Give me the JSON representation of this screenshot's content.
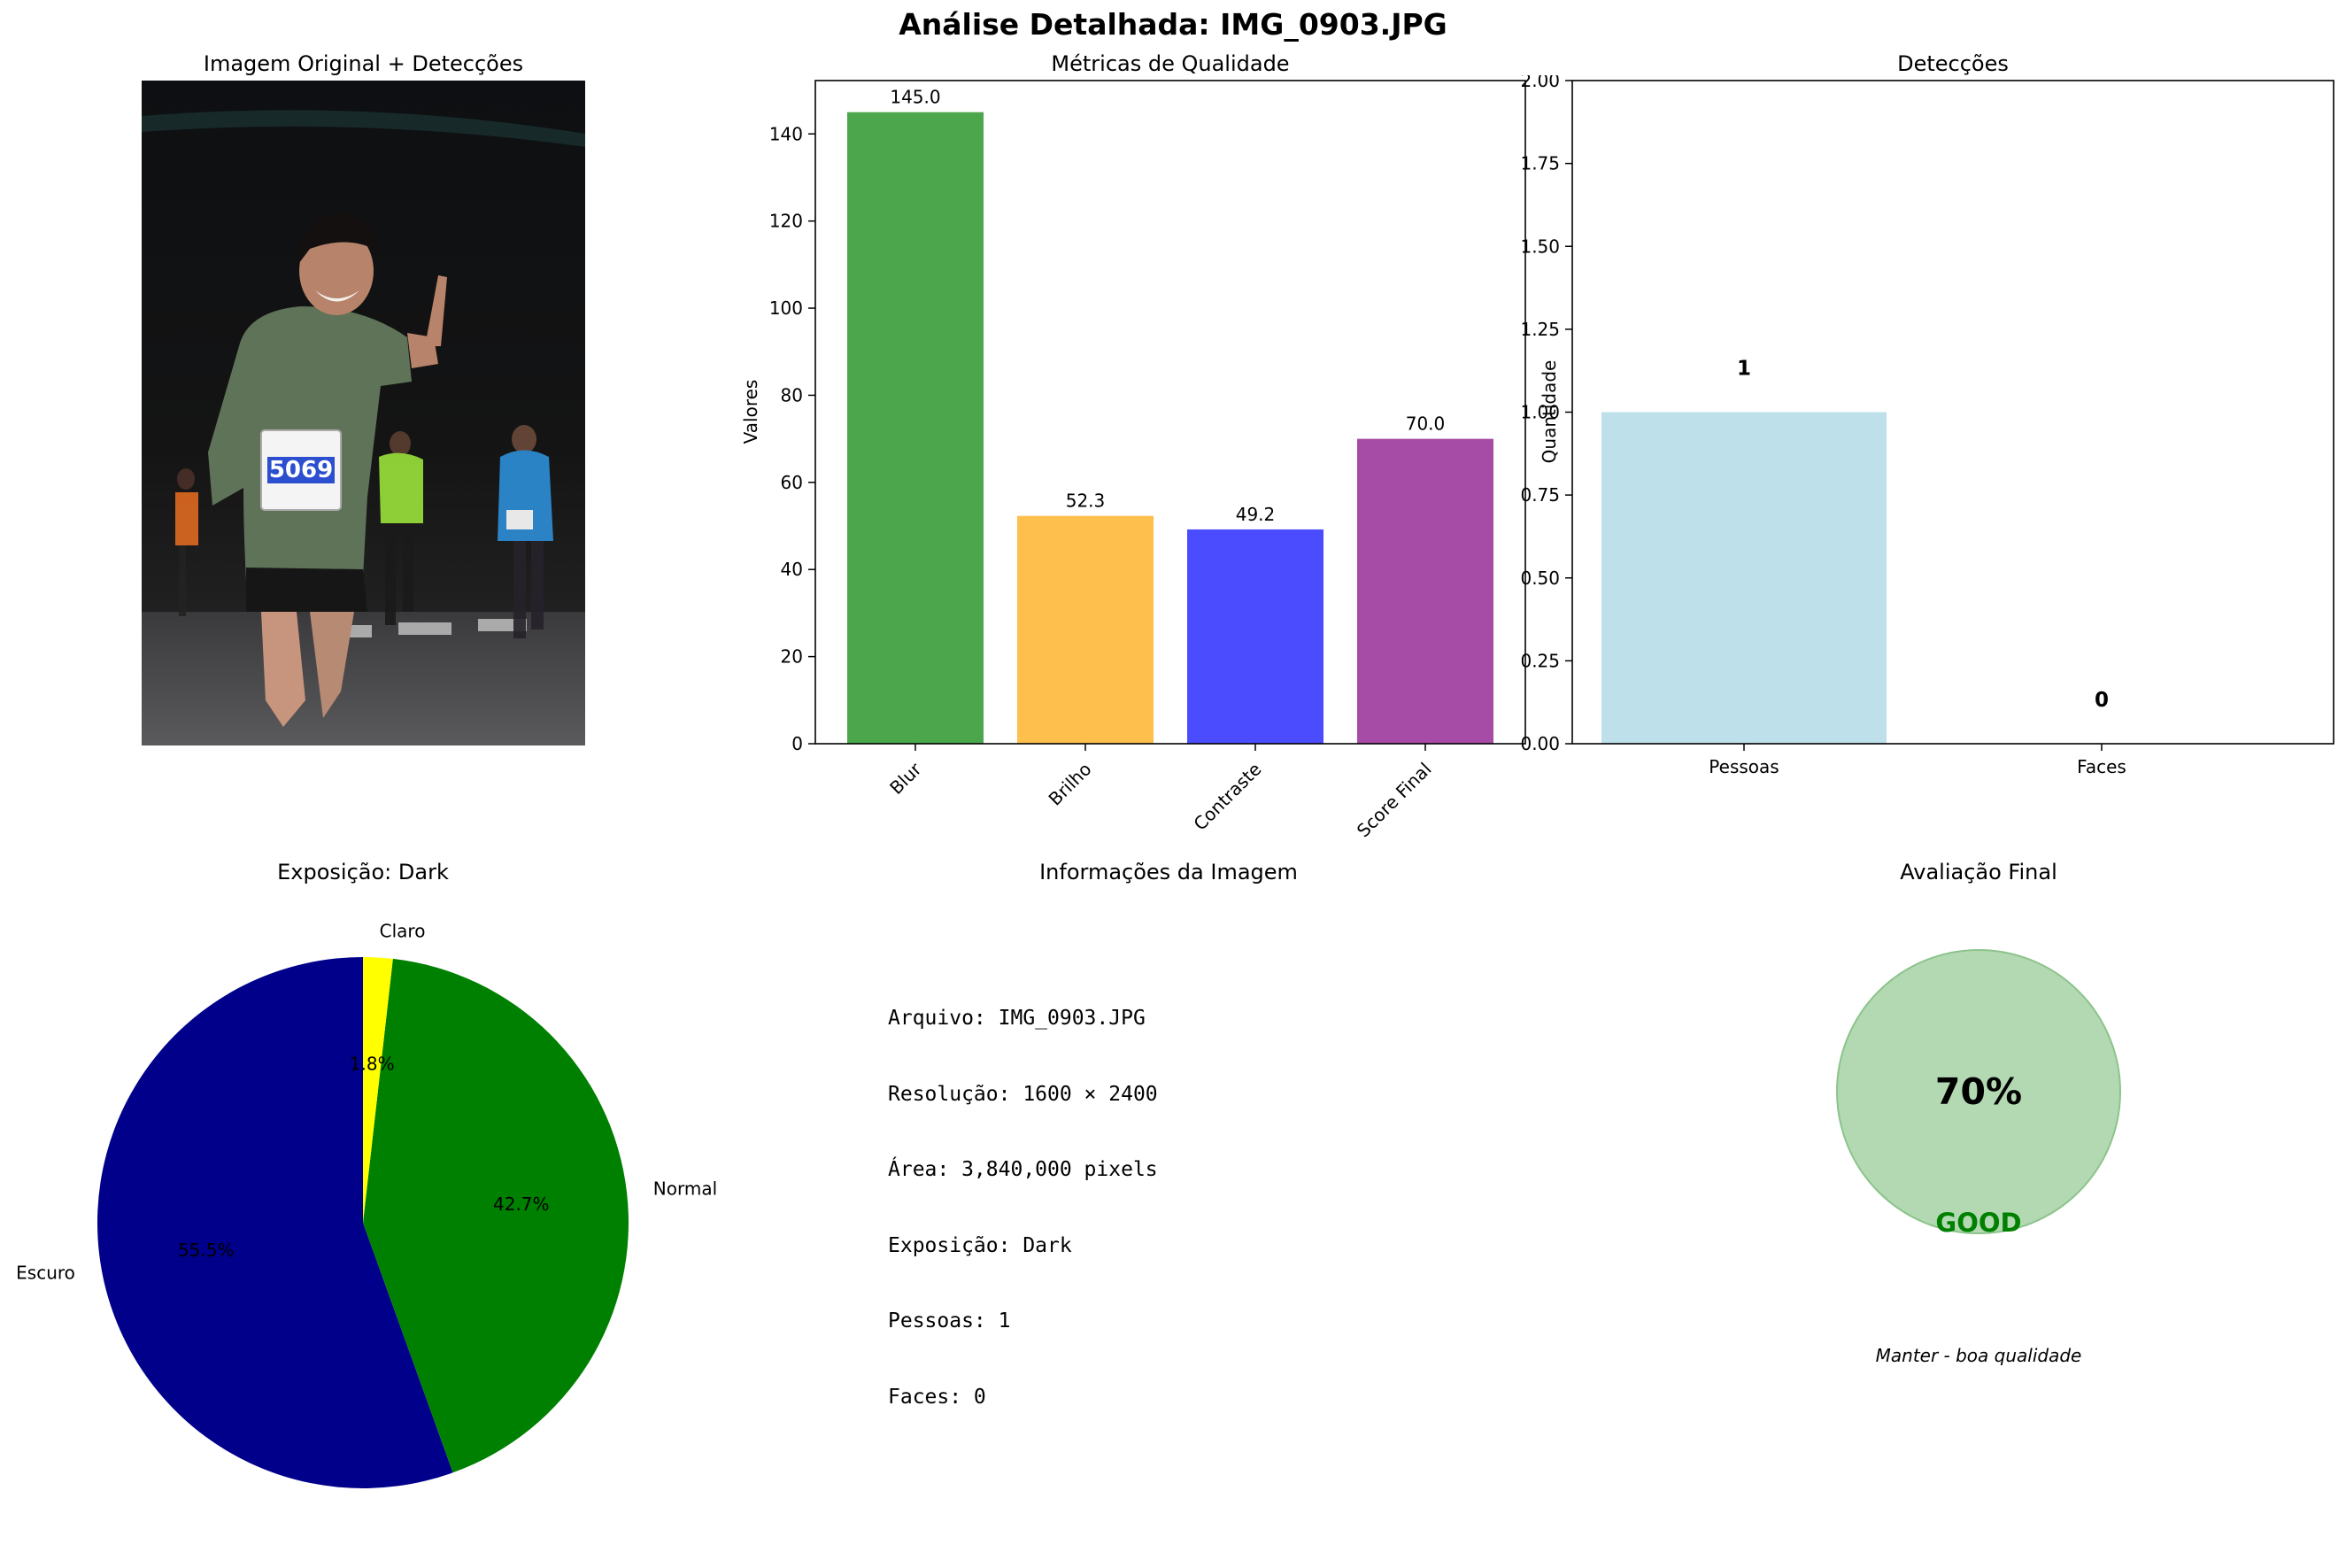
{
  "figure": {
    "title": "Análise Detalhada: IMG_0903.JPG"
  },
  "panels": {
    "photo": {
      "title": "Imagem Original + Detecções",
      "bib_number": "5069"
    },
    "quality": {
      "title": "Métricas de Qualidade"
    },
    "detections": {
      "title": "Detecções"
    },
    "exposure": {
      "title": "Exposição: Dark"
    },
    "info": {
      "title": "Informações da Imagem",
      "lines": [
        "Arquivo: IMG_0903.JPG",
        "Resolução: 1600 × 2400",
        "Área: 3,840,000 pixels",
        "Exposição: Dark",
        "Pessoas: 1",
        "Faces: 0"
      ]
    },
    "verdict": {
      "title": "Avaliação Final",
      "score_text": "70%",
      "grade": "GOOD",
      "grade_color": "#008000",
      "circle_color": "#b3d9b3",
      "recommendation": "Manter - boa qualidade"
    }
  },
  "chart_data": [
    {
      "type": "bar",
      "title": "Métricas de Qualidade",
      "xlabel": "",
      "ylabel": "Valores",
      "categories": [
        "Blur",
        "Brilho",
        "Contraste",
        "Score Final"
      ],
      "values": [
        145.0,
        52.3,
        49.2,
        70.0
      ],
      "value_labels": [
        "145.0",
        "52.3",
        "49.2",
        "70.0"
      ],
      "colors": [
        "#4ca64c",
        "#ffbf4c",
        "#4c4cff",
        "#a64ca6"
      ],
      "ylim": [
        0,
        152.25
      ],
      "yticks": [
        0,
        20,
        40,
        60,
        80,
        100,
        120,
        140
      ],
      "grid": false
    },
    {
      "type": "bar",
      "title": "Detecções",
      "xlabel": "",
      "ylabel": "Quantidade",
      "categories": [
        "Pessoas",
        "Faces"
      ],
      "values": [
        1,
        0
      ],
      "value_labels": [
        "1",
        "0"
      ],
      "colors": [
        "#add8e6",
        "#f08080"
      ],
      "ylim": [
        0,
        2
      ],
      "yticks": [
        "0.00",
        "0.25",
        "0.50",
        "0.75",
        "1.00",
        "1.25",
        "1.50",
        "1.75",
        "2.00"
      ],
      "grid": false
    },
    {
      "type": "pie",
      "title": "Exposição: Dark",
      "labels": [
        "Escuro",
        "Normal",
        "Claro"
      ],
      "values": [
        55.5,
        42.7,
        1.8
      ],
      "pct_labels": [
        "55.5%",
        "42.7%",
        "1.8%"
      ],
      "colors": [
        "#00008b",
        "#008000",
        "#ffff00"
      ]
    }
  ]
}
